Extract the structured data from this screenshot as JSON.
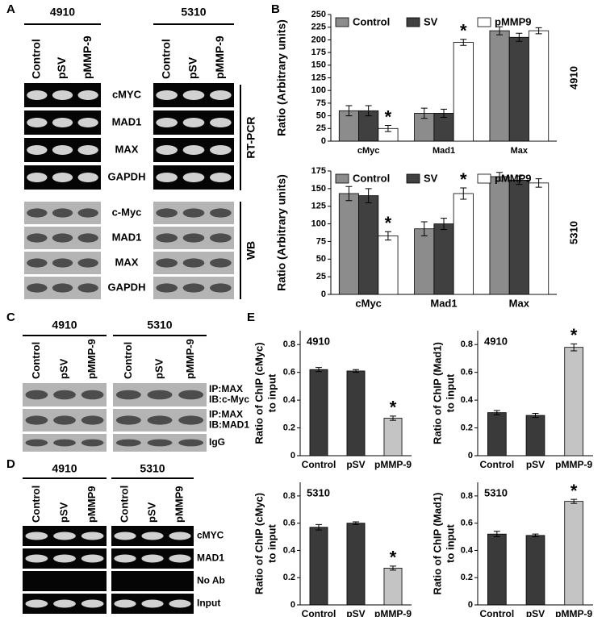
{
  "panel_labels": [
    "A",
    "B",
    "C",
    "D",
    "E"
  ],
  "gel_panels": [
    {
      "groups": [
        {
          "title": "4910",
          "lanes": [
            "Control",
            "pSV",
            "pMMP-9"
          ]
        },
        {
          "title": "5310",
          "lanes": [
            "Control",
            "pSV",
            "pMMP-9"
          ]
        }
      ],
      "rows": [
        "cMYC",
        "MAD1",
        "MAX",
        "GAPDH",
        "c-Myc",
        "MAD1",
        "MAX",
        "GAPDH"
      ],
      "brackets": [
        "RT-PCR",
        "WB"
      ]
    },
    {
      "groups": [
        {
          "title": "4910",
          "lanes": [
            "Control",
            "pSV",
            "pMMP-9"
          ]
        },
        {
          "title": "5310",
          "lanes": [
            "Control",
            "pSV",
            "pMMP-9"
          ]
        }
      ],
      "rows": [
        [
          "IP:MAX",
          "IB:c-Myc"
        ],
        [
          "IP:MAX",
          "IB:MAD1"
        ],
        [
          "IgG"
        ]
      ]
    },
    {
      "groups": [
        {
          "title": "4910",
          "lanes": [
            "Control",
            "pSV",
            "pMMP9"
          ]
        },
        {
          "title": "5310",
          "lanes": [
            "Control",
            "pSV",
            "pMMP9"
          ]
        }
      ],
      "rows": [
        "cMYC",
        "MAD1",
        "No Ab",
        "Input"
      ]
    }
  ],
  "chart_data": [
    {
      "type": "bar",
      "ylabel": "Ratio (Arbitrary units)",
      "side_label": "4910",
      "categories": [
        "cMyc",
        "Mad1",
        "Max"
      ],
      "series": [
        {
          "name": "Control",
          "color": "#8c8c8c",
          "values": [
            60,
            55,
            218
          ],
          "errors": [
            10,
            10,
            8
          ],
          "annotations": [
            null,
            null,
            null
          ]
        },
        {
          "name": "SV",
          "color": "#404040",
          "values": [
            60,
            55,
            205
          ],
          "errors": [
            10,
            8,
            8
          ],
          "annotations": [
            null,
            null,
            null
          ]
        },
        {
          "name": "pMMP9",
          "color": "#ffffff",
          "values": [
            25,
            195,
            218
          ],
          "errors": [
            6,
            6,
            6
          ],
          "annotations": [
            "*",
            "*",
            null
          ]
        }
      ],
      "ylim": [
        0,
        250
      ],
      "yticks": [
        0,
        25,
        50,
        75,
        100,
        125,
        150,
        175,
        200,
        225,
        250
      ],
      "legend": "top"
    },
    {
      "type": "bar",
      "ylabel": "Ratio (Arbitrary units)",
      "side_label": "5310",
      "categories": [
        "cMyc",
        "Mad1",
        "Max"
      ],
      "series": [
        {
          "name": "Control",
          "color": "#8c8c8c",
          "values": [
            143,
            93,
            167
          ],
          "errors": [
            10,
            10,
            6
          ],
          "annotations": [
            null,
            null,
            null
          ]
        },
        {
          "name": "SV",
          "color": "#404040",
          "values": [
            140,
            100,
            162
          ],
          "errors": [
            10,
            8,
            6
          ],
          "annotations": [
            null,
            null,
            null
          ]
        },
        {
          "name": "pMMP9",
          "color": "#ffffff",
          "values": [
            83,
            143,
            158
          ],
          "errors": [
            6,
            8,
            6
          ],
          "annotations": [
            "*",
            "*",
            null
          ]
        }
      ],
      "ylim": [
        0,
        175
      ],
      "yticks": [
        0,
        25,
        50,
        75,
        100,
        125,
        150,
        175
      ],
      "legend": "top"
    },
    {
      "type": "bar",
      "title": "4910",
      "ylabel": [
        "Ratio of ChIP (cMyc)",
        "to input"
      ],
      "categories": [
        "Control",
        "pSV",
        "pMMP-9"
      ],
      "values": [
        0.62,
        0.61,
        0.27
      ],
      "errors": [
        0.015,
        0.01,
        0.015
      ],
      "colors": [
        "#3a3a3a",
        "#3a3a3a",
        "#c4c4c4"
      ],
      "annotations": [
        null,
        null,
        "*"
      ],
      "ylim": [
        0,
        0.9
      ],
      "yticks": [
        0,
        0.2,
        0.4,
        0.6,
        0.8
      ]
    },
    {
      "type": "bar",
      "title": "4910",
      "ylabel": [
        "Ratio of ChIP (Mad1)",
        "to input"
      ],
      "categories": [
        "Control",
        "pSV",
        "pMMP-9"
      ],
      "values": [
        0.31,
        0.29,
        0.78
      ],
      "errors": [
        0.015,
        0.015,
        0.025
      ],
      "colors": [
        "#3a3a3a",
        "#3a3a3a",
        "#c4c4c4"
      ],
      "annotations": [
        null,
        null,
        "*"
      ],
      "ylim": [
        0,
        0.9
      ],
      "yticks": [
        0,
        0.2,
        0.4,
        0.6,
        0.8
      ]
    },
    {
      "type": "bar",
      "title": "5310",
      "ylabel": [
        "Ratio of ChIP (cMyc)",
        "to input"
      ],
      "categories": [
        "Control",
        "pSV",
        "pMMP-9"
      ],
      "values": [
        0.57,
        0.6,
        0.27
      ],
      "errors": [
        0.02,
        0.01,
        0.015
      ],
      "colors": [
        "#3a3a3a",
        "#3a3a3a",
        "#c4c4c4"
      ],
      "annotations": [
        null,
        null,
        "*"
      ],
      "ylim": [
        0,
        0.9
      ],
      "yticks": [
        0,
        0.2,
        0.4,
        0.6,
        0.8
      ]
    },
    {
      "type": "bar",
      "title": "5310",
      "ylabel": [
        "Ratio of ChIP (Mad1)",
        "to input"
      ],
      "categories": [
        "Control",
        "pSV",
        "pMMP-9"
      ],
      "values": [
        0.52,
        0.51,
        0.76
      ],
      "errors": [
        0.02,
        0.01,
        0.015
      ],
      "colors": [
        "#3a3a3a",
        "#3a3a3a",
        "#c4c4c4"
      ],
      "annotations": [
        null,
        null,
        "*"
      ],
      "ylim": [
        0,
        0.9
      ],
      "yticks": [
        0,
        0.2,
        0.4,
        0.6,
        0.8
      ]
    }
  ]
}
